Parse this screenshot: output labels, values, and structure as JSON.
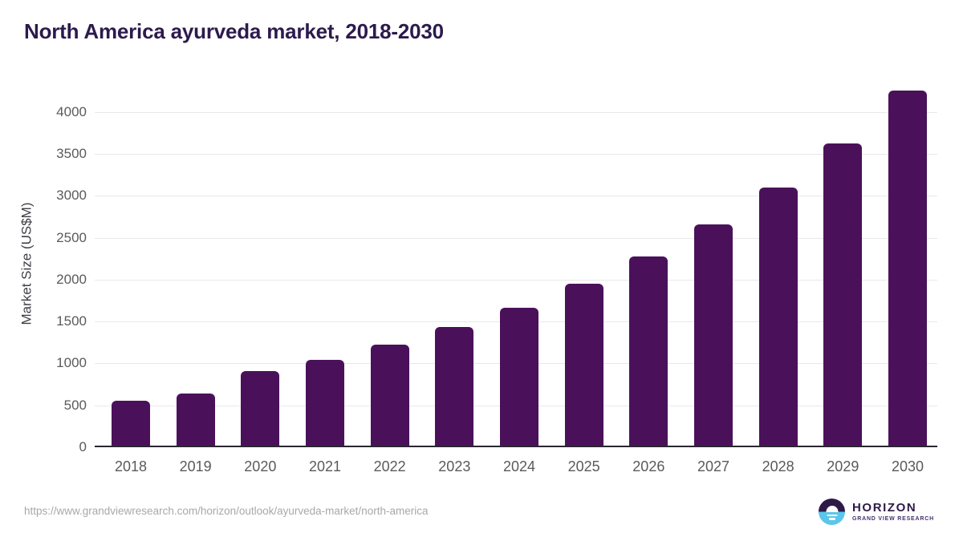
{
  "header": {
    "title": "North America ayurveda market, 2018-2030",
    "title_color": "#2d1a4d"
  },
  "chart_data": {
    "type": "bar",
    "title": "North America ayurveda market, 2018-2030",
    "categories": [
      "2018",
      "2019",
      "2020",
      "2021",
      "2022",
      "2023",
      "2024",
      "2025",
      "2026",
      "2027",
      "2028",
      "2029",
      "2030"
    ],
    "values": [
      555,
      645,
      910,
      1045,
      1220,
      1430,
      1665,
      1950,
      2280,
      2655,
      3100,
      3625,
      4260
    ],
    "xlabel": "",
    "ylabel": "Market Size (US$M)",
    "ylim": [
      0,
      4380
    ],
    "yticks": [
      0,
      500,
      1000,
      1500,
      2000,
      2500,
      3000,
      3500,
      4000
    ],
    "grid": "horizontal",
    "legend": "none",
    "bar_color": "#4a115a",
    "gridline_color": "#e8e8e8",
    "axis_line_color": "#2a2630",
    "tick_label_color": "#595a5c"
  },
  "footer": {
    "source_url": "https://www.grandviewresearch.com/horizon/outlook/ayurveda-market/north-america",
    "logo": {
      "name": "HORIZON",
      "subtext": "GRAND VIEW RESEARCH",
      "purple": "#2e1a47",
      "blue": "#5bc6ea"
    }
  }
}
